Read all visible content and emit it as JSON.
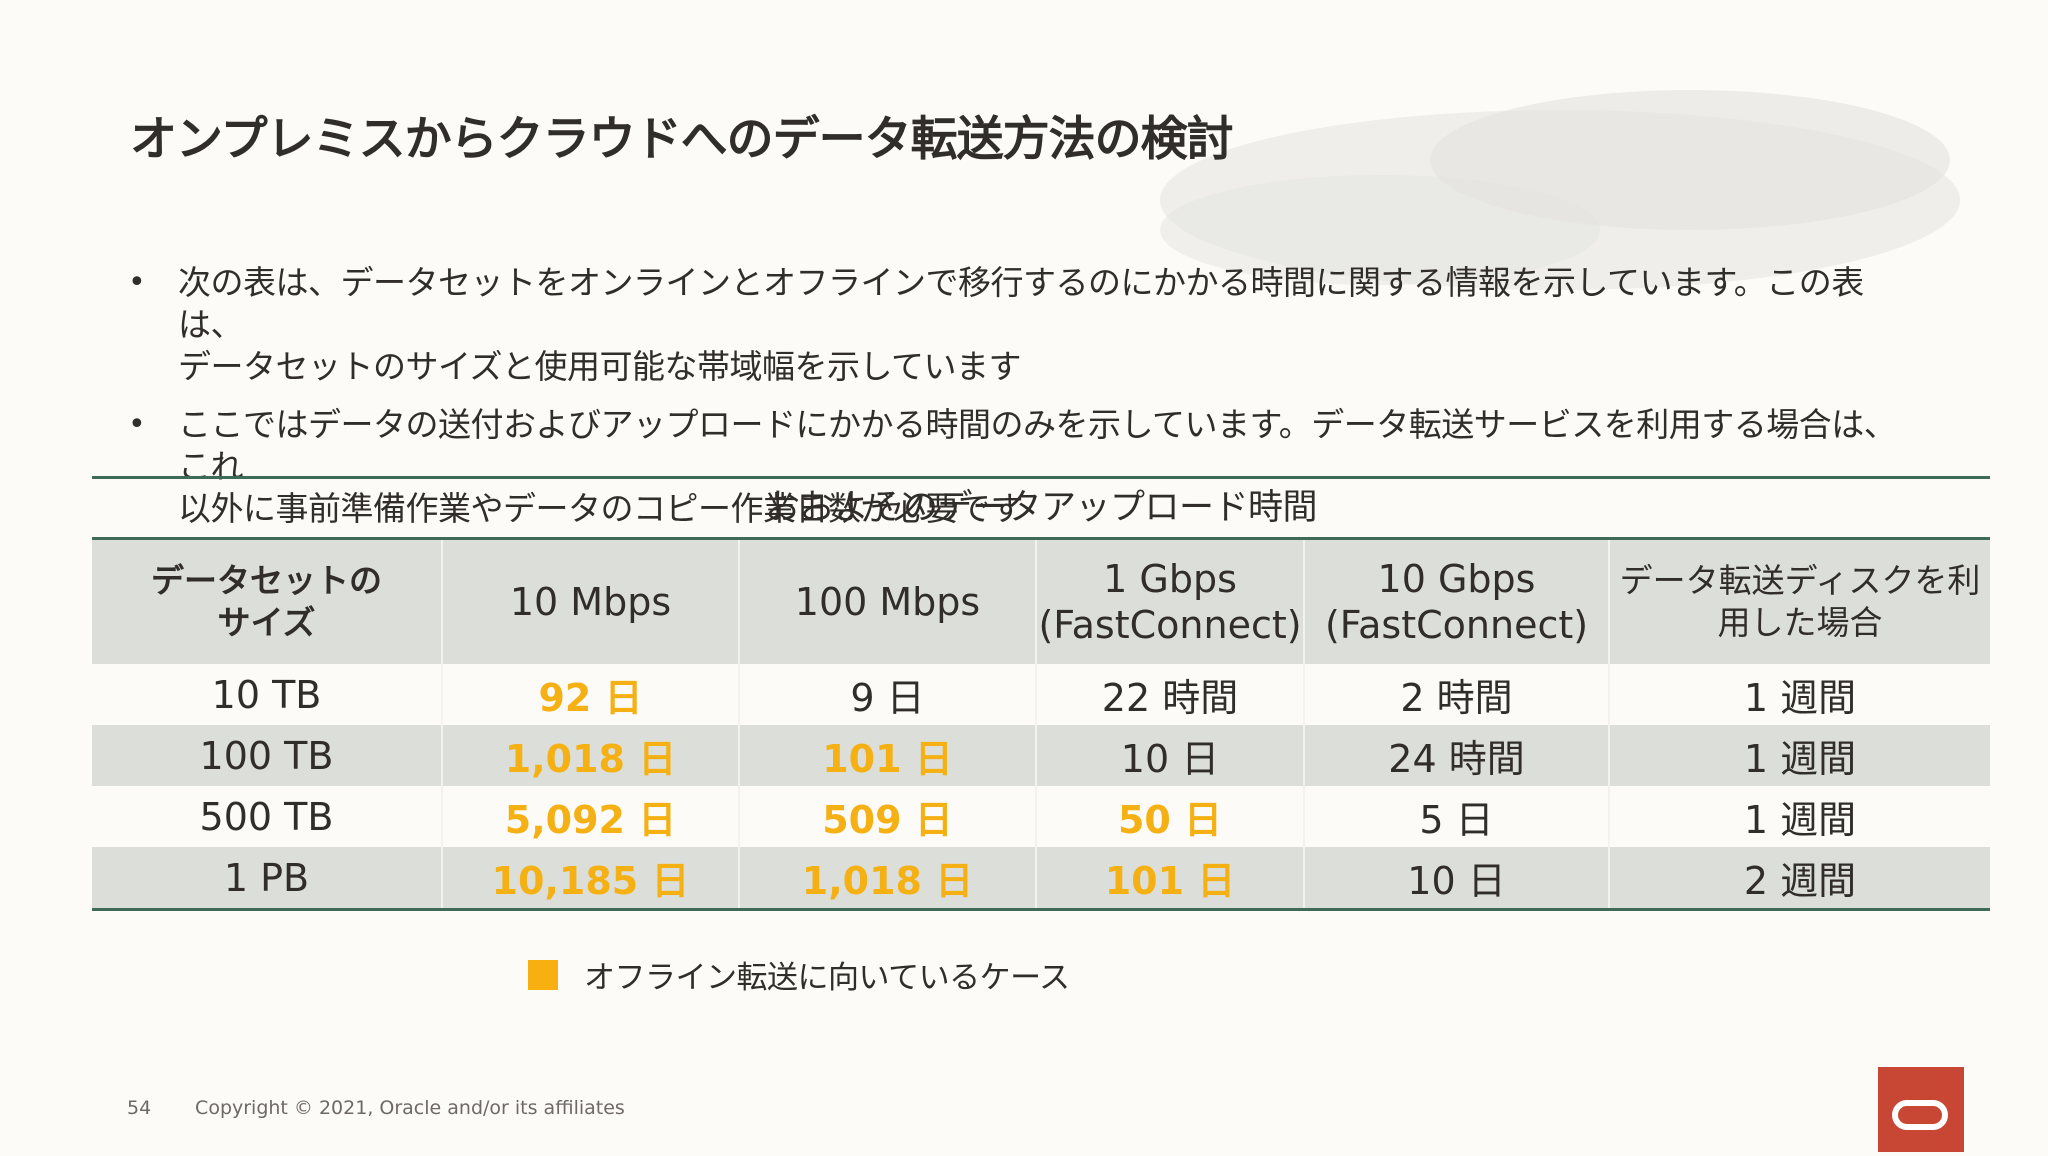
{
  "title": "オンプレミスからクラウドへのデータ転送方法の検討",
  "bullets": [
    {
      "marker": "•",
      "line1": "次の表は、データセットをオンラインとオフラインで移行するのにかかる時間に関する情報を示しています。この表は、",
      "line2": "データセットのサイズと使用可能な帯域幅を示しています"
    },
    {
      "marker": "•",
      "line1": "ここではデータの送付およびアップロードにかかる時間のみを示しています。データ転送サービスを利用する場合は、これ",
      "line2": "以外に事前準備作業やデータのコピー作業日数が必要です"
    }
  ],
  "table": {
    "caption": "おおよそのデータアップロード時間",
    "headers": [
      {
        "line1": "データセットの",
        "line2": "サイズ"
      },
      {
        "line1": "10 Mbps",
        "line2": ""
      },
      {
        "line1": "100 Mbps",
        "line2": ""
      },
      {
        "line1": "1 Gbps",
        "line2": "(FastConnect)"
      },
      {
        "line1": "10 Gbps",
        "line2": "(FastConnect)"
      },
      {
        "line1": "データ転送ディスクを利",
        "line2": "用した場合"
      }
    ],
    "rows": [
      [
        "10 TB",
        "92 日",
        "9 日",
        "22 時間",
        "2 時間",
        "1 週間"
      ],
      [
        "100 TB",
        "1,018 日",
        "101 日",
        "10 日",
        "24 時間",
        "1 週間"
      ],
      [
        "500 TB",
        "5,092 日",
        "509 日",
        "50 日",
        "5 日",
        "1 週間"
      ],
      [
        "1 PB",
        "10,185 日",
        "1,018 日",
        "101 日",
        "10 日",
        "2 週間"
      ]
    ]
  },
  "legend": {
    "label": "オフライン転送に向いているケース",
    "color": "#f8b011"
  },
  "footer": {
    "page_number": "54",
    "copyright": "Copyright © 2021, Oracle and/or its affiliates"
  },
  "colors": {
    "accent": "#3d6b55",
    "highlight_text": "#f5b014",
    "brand": "#c74634",
    "row_alt": "#dcdfd9"
  }
}
